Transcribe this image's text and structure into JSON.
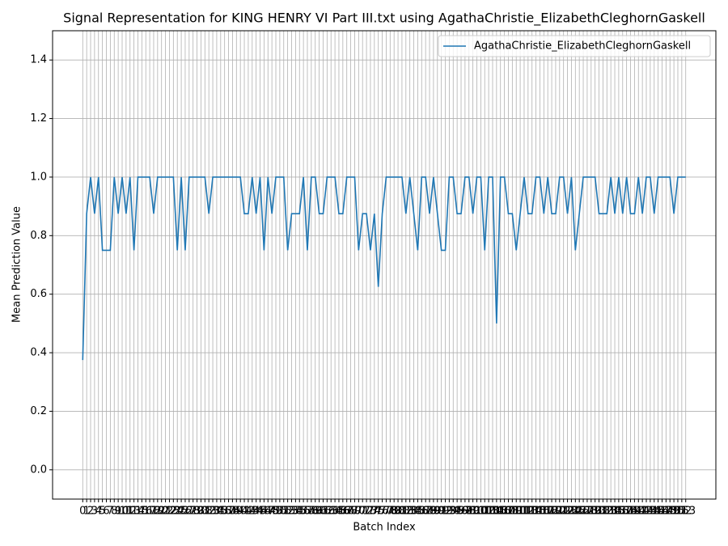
{
  "chart_data": {
    "type": "line",
    "title": "Signal Representation for KING HENRY VI Part III.txt using AgathaChristie_ElizabethCleghornGaskell",
    "x_label": "Batch Index",
    "y_label": "Mean Prediction Value",
    "x": [
      0,
      1,
      2,
      3,
      4,
      5,
      6,
      7,
      8,
      9,
      10,
      11,
      12,
      13,
      14,
      15,
      16,
      17,
      18,
      19,
      20,
      21,
      22,
      23,
      24,
      25,
      26,
      27,
      28,
      29,
      30,
      31,
      32,
      33,
      34,
      35,
      36,
      37,
      38,
      39,
      40,
      41,
      42,
      43,
      44,
      45,
      46,
      47,
      48,
      49,
      50,
      51,
      52,
      53,
      54,
      55,
      56,
      57,
      58,
      59,
      60,
      61,
      62,
      63,
      64,
      65,
      66,
      67,
      68,
      69,
      70,
      71,
      72,
      73,
      74,
      75,
      76,
      77,
      78,
      79,
      80,
      81,
      82,
      83,
      84,
      85,
      86,
      87,
      88,
      89,
      90,
      91,
      92,
      93,
      94,
      95,
      96,
      97,
      98,
      99,
      100,
      101,
      102,
      103,
      104,
      105,
      106,
      107,
      108,
      109,
      110,
      111,
      112,
      113,
      114,
      115,
      116,
      117,
      118,
      119,
      120,
      121,
      122,
      123,
      124,
      125,
      126,
      127,
      128,
      129,
      130,
      131,
      132,
      133,
      134,
      135,
      136,
      137,
      138,
      139,
      140,
      141,
      142,
      143,
      144,
      145,
      146,
      147,
      148,
      149,
      150,
      151,
      152,
      153
    ],
    "series": [
      {
        "name": "AgathaChristie_ElizabethCleghornGaskell",
        "color": "#1f77b4",
        "values": [
          0.375,
          0.875,
          1,
          0.875,
          1,
          0.75,
          0.75,
          0.75,
          1,
          0.875,
          1,
          0.875,
          1,
          0.75,
          1,
          1,
          1,
          1,
          0.875,
          1,
          1,
          1,
          1,
          1,
          0.75,
          1,
          0.75,
          1,
          1,
          1,
          1,
          1,
          0.875,
          1,
          1,
          1,
          1,
          1,
          1,
          1,
          1,
          0.875,
          0.875,
          1,
          0.875,
          1,
          0.75,
          1,
          0.875,
          1,
          1,
          1,
          0.75,
          0.875,
          0.875,
          0.875,
          1,
          0.75,
          1,
          1,
          0.875,
          0.875,
          1,
          1,
          1,
          0.875,
          0.875,
          1,
          1,
          1,
          0.75,
          0.875,
          0.875,
          0.75,
          0.875,
          0.625,
          0.875,
          1,
          1,
          1,
          1,
          1,
          0.875,
          1,
          0.875,
          0.75,
          1,
          1,
          0.875,
          1,
          0.875,
          0.75,
          0.75,
          1,
          1,
          0.875,
          0.875,
          1,
          1,
          0.875,
          1,
          1,
          0.75,
          1,
          1,
          0.5,
          1,
          1,
          0.875,
          0.875,
          0.75,
          0.875,
          1,
          0.875,
          0.875,
          1,
          1,
          0.875,
          1,
          0.875,
          0.875,
          1,
          1,
          0.875,
          1,
          0.75,
          0.875,
          1,
          1,
          1,
          1,
          0.875,
          0.875,
          0.875,
          1,
          0.875,
          1,
          0.875,
          1,
          0.875,
          0.875,
          1,
          0.875,
          1,
          1,
          0.875,
          1,
          1,
          1,
          1,
          0.875,
          1,
          1,
          1
        ]
      }
    ],
    "xlim": [
      -7.65,
      160.65
    ],
    "xticks": [
      0,
      1,
      2,
      3,
      4,
      5,
      6,
      7,
      8,
      9,
      10,
      11,
      12,
      13,
      14,
      15,
      16,
      17,
      18,
      19,
      20,
      21,
      22,
      23,
      24,
      25,
      26,
      27,
      28,
      29,
      30,
      31,
      32,
      33,
      34,
      35,
      36,
      37,
      38,
      39,
      40,
      41,
      42,
      43,
      44,
      45,
      46,
      47,
      48,
      49,
      50,
      51,
      52,
      53,
      54,
      55,
      56,
      57,
      58,
      59,
      60,
      61,
      62,
      63,
      64,
      65,
      66,
      67,
      68,
      69,
      70,
      71,
      72,
      73,
      74,
      75,
      76,
      77,
      78,
      79,
      80,
      81,
      82,
      83,
      84,
      85,
      86,
      87,
      88,
      89,
      90,
      91,
      92,
      93,
      94,
      95,
      96,
      97,
      98,
      99,
      100,
      101,
      102,
      103,
      104,
      105,
      106,
      107,
      108,
      109,
      110,
      111,
      112,
      113,
      114,
      115,
      116,
      117,
      118,
      119,
      120,
      121,
      122,
      123,
      124,
      125,
      126,
      127,
      128,
      129,
      130,
      131,
      132,
      133,
      134,
      135,
      136,
      137,
      138,
      139,
      140,
      141,
      142,
      143,
      144,
      145,
      146,
      147,
      148,
      149,
      150,
      151,
      152,
      153
    ],
    "ylim": [
      -0.1,
      1.5
    ],
    "yticks": [
      {
        "value": 0,
        "label": "0.0"
      },
      {
        "value": 0.2,
        "label": "0.2"
      },
      {
        "value": 0.4,
        "label": "0.4"
      },
      {
        "value": 0.6,
        "label": "0.6"
      },
      {
        "value": 0.8,
        "label": "0.8"
      },
      {
        "value": 1,
        "label": "1.0"
      },
      {
        "value": 1.2,
        "label": "1.2"
      },
      {
        "value": 1.4,
        "label": "1.4"
      }
    ],
    "grid": true,
    "legend": "upper right"
  }
}
